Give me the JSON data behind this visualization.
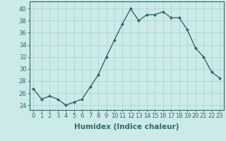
{
  "x": [
    0,
    1,
    2,
    3,
    4,
    5,
    6,
    7,
    8,
    9,
    10,
    11,
    12,
    13,
    14,
    15,
    16,
    17,
    18,
    19,
    20,
    21,
    22,
    23
  ],
  "y": [
    26.7,
    25.0,
    25.5,
    25.0,
    24.0,
    24.5,
    25.0,
    27.0,
    29.0,
    32.0,
    34.8,
    37.5,
    40.0,
    38.0,
    39.0,
    39.0,
    39.5,
    38.5,
    38.5,
    36.5,
    33.5,
    32.0,
    29.5,
    28.5
  ],
  "line_color": "#2e6b6b",
  "marker": "D",
  "marker_size": 2.0,
  "bg_color": "#cceaea",
  "grid_color": "#b0d8d8",
  "xlabel": "Humidex (Indice chaleur)",
  "yticks": [
    24,
    26,
    28,
    30,
    32,
    34,
    36,
    38,
    40
  ],
  "xticks": [
    0,
    1,
    2,
    3,
    4,
    5,
    6,
    7,
    8,
    9,
    10,
    11,
    12,
    13,
    14,
    15,
    16,
    17,
    18,
    19,
    20,
    21,
    22,
    23
  ],
  "ylim": [
    23.2,
    41.2
  ],
  "xlim": [
    -0.5,
    23.5
  ],
  "tick_color": "#2e6b6b",
  "xlabel_fontsize": 7.5,
  "tick_fontsize": 6.0,
  "line_width": 1.0
}
